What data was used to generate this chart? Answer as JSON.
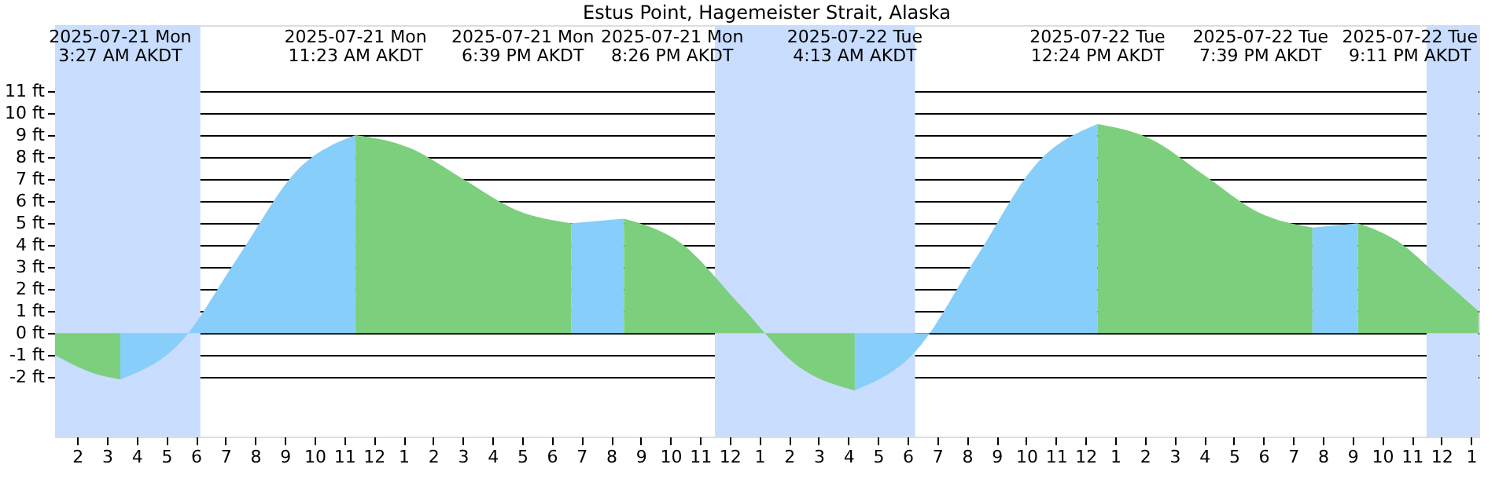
{
  "chart_data": {
    "type": "area",
    "title": "Estus Point, Hagemeister Strait, Alaska",
    "series": [
      {
        "color": "#7ccf7c",
        "x": [
          "2025-07-21T01:15",
          "2025-07-21T02:30",
          "2025-07-21T03:27"
        ],
        "values": [
          -1.0,
          -1.8,
          -2.1
        ]
      },
      {
        "color": "#87cefa",
        "x": [
          "2025-07-21T03:27",
          "2025-07-21T05:26",
          "2025-07-21T07:25",
          "2025-07-21T09:24",
          "2025-07-21T11:23"
        ],
        "values": [
          -2.1,
          -0.48,
          3.45,
          7.38,
          9.0
        ]
      },
      {
        "color": "#7ccf7c",
        "x": [
          "2025-07-21T11:23",
          "2025-07-21T13:12",
          "2025-07-21T15:01",
          "2025-07-21T16:50",
          "2025-07-21T18:39"
        ],
        "values": [
          9.0,
          8.42,
          7.0,
          5.58,
          5.0
        ]
      },
      {
        "color": "#87cefa",
        "x": [
          "2025-07-21T18:39",
          "2025-07-21T19:32",
          "2025-07-21T20:26"
        ],
        "values": [
          5.0,
          5.1,
          5.2
        ]
      },
      {
        "color": "#7ccf7c",
        "x": [
          "2025-07-21T20:26",
          "2025-07-21T22:23",
          "2025-07-22T00:20",
          "2025-07-22T02:16",
          "2025-07-22T04:13"
        ],
        "values": [
          5.2,
          4.06,
          1.3,
          -1.46,
          -2.6
        ]
      },
      {
        "color": "#87cefa",
        "x": [
          "2025-07-22T04:13",
          "2025-07-22T06:16",
          "2025-07-22T08:19",
          "2025-07-22T10:22",
          "2025-07-22T12:24"
        ],
        "values": [
          -2.6,
          -0.83,
          3.45,
          7.73,
          9.5
        ]
      },
      {
        "color": "#7ccf7c",
        "x": [
          "2025-07-22T12:24",
          "2025-07-22T14:13",
          "2025-07-22T16:02",
          "2025-07-22T17:50",
          "2025-07-22T19:39"
        ],
        "values": [
          9.5,
          8.81,
          7.15,
          5.49,
          4.8
        ]
      },
      {
        "color": "#87cefa",
        "x": [
          "2025-07-22T19:39",
          "2025-07-22T20:25",
          "2025-07-22T21:11"
        ],
        "values": [
          4.8,
          4.9,
          5.0
        ]
      },
      {
        "color": "#7ccf7c",
        "x": [
          "2025-07-22T21:11",
          "2025-07-22T22:30",
          "2025-07-22T23:54",
          "2025-07-23T01:15"
        ],
        "values": [
          5.0,
          4.2,
          2.6,
          1.0
        ]
      }
    ],
    "annotations": [
      "2025-07-21 Mon\n3:27 AM AKDT",
      "2025-07-21 Mon\n11:23 AM AKDT",
      "2025-07-21 Mon\n6:39 PM AKDT",
      "2025-07-21 Mon\n8:26 PM AKDT",
      "2025-07-22 Tue\n4:13 AM AKDT",
      "2025-07-22 Tue\n12:24 PM AKDT",
      "2025-07-22 Tue\n7:39 PM AKDT",
      "2025-07-22 Tue\n9:11 PM AKDT"
    ],
    "bands": [
      {
        "axis": "x",
        "from": "2025-07-21T01:15",
        "to": "2025-07-21T06:09",
        "color": "#c9ddff"
      },
      {
        "axis": "x",
        "from": "2025-07-21T23:30",
        "to": "2025-07-22T06:15",
        "color": "#c9ddff"
      },
      {
        "axis": "x",
        "from": "2025-07-22T23:30",
        "to": "2025-07-23T01:15",
        "color": "#c9ddff"
      }
    ],
    "xlim": [
      "2025-07-21T01:15",
      "2025-07-23T01:15"
    ],
    "ylim": [
      -4.7,
      14
    ],
    "yticks": [
      {
        "value": -2,
        "label": "-2 ft"
      },
      {
        "value": -1,
        "label": "-1 ft"
      },
      {
        "value": 0,
        "label": "0 ft"
      },
      {
        "value": 1,
        "label": "1 ft"
      },
      {
        "value": 2,
        "label": "2 ft"
      },
      {
        "value": 3,
        "label": "3 ft"
      },
      {
        "value": 4,
        "label": "4 ft"
      },
      {
        "value": 5,
        "label": "5 ft"
      },
      {
        "value": 6,
        "label": "6 ft"
      },
      {
        "value": 7,
        "label": "7 ft"
      },
      {
        "value": 8,
        "label": "8 ft"
      },
      {
        "value": 9,
        "label": "9 ft"
      },
      {
        "value": 10,
        "label": "10 ft"
      },
      {
        "value": 11,
        "label": "11 ft"
      }
    ],
    "xticks": [
      {
        "value": "2025-07-21T02:00",
        "label": "2"
      },
      {
        "value": "2025-07-21T03:00",
        "label": "3"
      },
      {
        "value": "2025-07-21T04:00",
        "label": "4"
      },
      {
        "value": "2025-07-21T05:00",
        "label": "5"
      },
      {
        "value": "2025-07-21T06:00",
        "label": "6"
      },
      {
        "value": "2025-07-21T07:00",
        "label": "7"
      },
      {
        "value": "2025-07-21T08:00",
        "label": "8"
      },
      {
        "value": "2025-07-21T09:00",
        "label": "9"
      },
      {
        "value": "2025-07-21T10:00",
        "label": "10"
      },
      {
        "value": "2025-07-21T11:00",
        "label": "11"
      },
      {
        "value": "2025-07-21T12:00",
        "label": "12"
      },
      {
        "value": "2025-07-21T13:00",
        "label": "1"
      },
      {
        "value": "2025-07-21T14:00",
        "label": "2"
      },
      {
        "value": "2025-07-21T15:00",
        "label": "3"
      },
      {
        "value": "2025-07-21T16:00",
        "label": "4"
      },
      {
        "value": "2025-07-21T17:00",
        "label": "5"
      },
      {
        "value": "2025-07-21T18:00",
        "label": "6"
      },
      {
        "value": "2025-07-21T19:00",
        "label": "7"
      },
      {
        "value": "2025-07-21T20:00",
        "label": "8"
      },
      {
        "value": "2025-07-21T21:00",
        "label": "9"
      },
      {
        "value": "2025-07-21T22:00",
        "label": "10"
      },
      {
        "value": "2025-07-21T23:00",
        "label": "11"
      },
      {
        "value": "2025-07-22T00:00",
        "label": "12"
      },
      {
        "value": "2025-07-22T01:00",
        "label": "1"
      },
      {
        "value": "2025-07-22T02:00",
        "label": "2"
      },
      {
        "value": "2025-07-22T03:00",
        "label": "3"
      },
      {
        "value": "2025-07-22T04:00",
        "label": "4"
      },
      {
        "value": "2025-07-22T05:00",
        "label": "5"
      },
      {
        "value": "2025-07-22T06:00",
        "label": "6"
      },
      {
        "value": "2025-07-22T07:00",
        "label": "7"
      },
      {
        "value": "2025-07-22T08:00",
        "label": "8"
      },
      {
        "value": "2025-07-22T09:00",
        "label": "9"
      },
      {
        "value": "2025-07-22T10:00",
        "label": "10"
      },
      {
        "value": "2025-07-22T11:00",
        "label": "11"
      },
      {
        "value": "2025-07-22T12:00",
        "label": "12"
      },
      {
        "value": "2025-07-22T13:00",
        "label": "1"
      },
      {
        "value": "2025-07-22T14:00",
        "label": "2"
      },
      {
        "value": "2025-07-22T15:00",
        "label": "3"
      },
      {
        "value": "2025-07-22T16:00",
        "label": "4"
      },
      {
        "value": "2025-07-22T17:00",
        "label": "5"
      },
      {
        "value": "2025-07-22T18:00",
        "label": "6"
      },
      {
        "value": "2025-07-22T19:00",
        "label": "7"
      },
      {
        "value": "2025-07-22T20:00",
        "label": "8"
      },
      {
        "value": "2025-07-22T21:00",
        "label": "9"
      },
      {
        "value": "2025-07-22T22:00",
        "label": "10"
      },
      {
        "value": "2025-07-22T23:00",
        "label": "11"
      },
      {
        "value": "2025-07-23T00:00",
        "label": "12"
      },
      {
        "value": "2025-07-23T01:00",
        "label": "1"
      }
    ],
    "grid": "y"
  }
}
